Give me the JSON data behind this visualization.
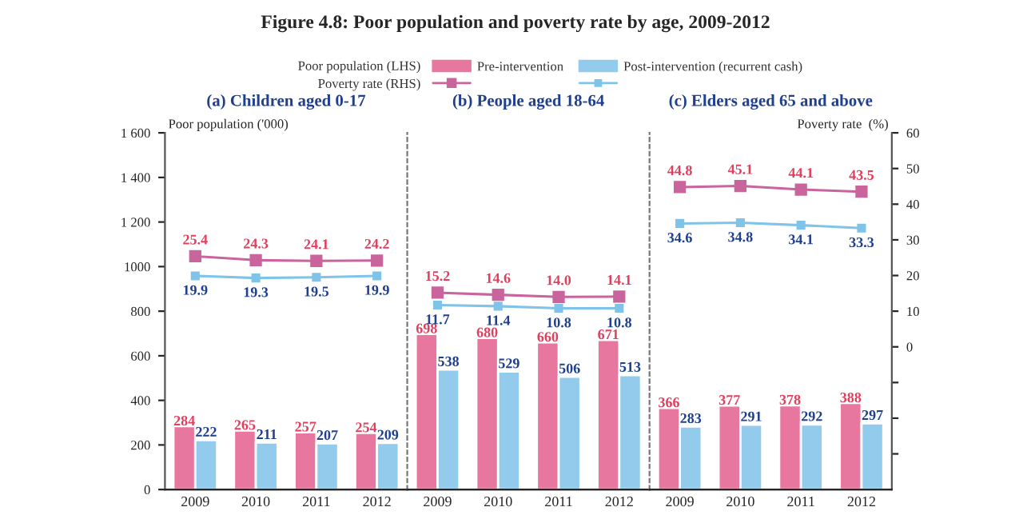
{
  "chart_data": [
    {
      "type": "bar",
      "title": "Figure 4.8: Poor population and poverty rate by age, 2009-2012",
      "subtitle": "(a) Children aged 0-17",
      "ylabel": "Poor population ('000)",
      "categories": [
        "2009",
        "2010",
        "2011",
        "2012"
      ],
      "series": [
        {
          "name": "Pre-intervention",
          "color": "#e8779f",
          "values": [
            284,
            265,
            257,
            254
          ]
        },
        {
          "name": "Post-intervention (recurrent cash)",
          "color": "#92cbeb",
          "values": [
            222,
            211,
            207,
            209
          ]
        },
        {
          "type": "line",
          "axis": "y2",
          "color": "#c9649c",
          "values": [
            25.4,
            24.3,
            24.1,
            24.2
          ]
        },
        {
          "type": "line",
          "axis": "y2",
          "color": "#7fc4e8",
          "values": [
            19.9,
            19.3,
            19.5,
            19.9
          ]
        }
      ],
      "annotations": [
        "Poor population (LHS)",
        "Poverty rate (RHS)"
      ],
      "ylim": [
        0,
        1600
      ],
      "yticks": [
        0,
        200,
        400,
        600,
        800,
        1000,
        {
          "value": 1200,
          "label": "1 200"
        },
        {
          "value": 1400,
          "label": "1 400"
        },
        {
          "value": 1600,
          "label": "1 600"
        }
      ],
      "y2lim": [
        -40,
        60
      ],
      "tick_labels": [
        "x",
        "y"
      ],
      "marker": "square",
      "data_labels": true,
      "legend": "top"
    },
    {
      "type": "bar",
      "subtitle": "(b) People aged 18-64",
      "categories": [
        "2009",
        "2010",
        "2011",
        "2012"
      ],
      "series": [
        {
          "color": "#e8779f",
          "values": [
            698,
            680,
            660,
            671
          ]
        },
        {
          "color": "#92cbeb",
          "values": [
            538,
            529,
            506,
            513
          ]
        },
        {
          "type": "line",
          "axis": "y2",
          "color": "#c9649c",
          "values": [
            15.2,
            14.6,
            14.0,
            14.1
          ],
          "value_labels": [
            "15.2",
            "14.6",
            "14.0",
            "14.1"
          ]
        },
        {
          "type": "line",
          "axis": "y2",
          "color": "#7fc4e8",
          "values": [
            11.7,
            11.4,
            10.8,
            10.8
          ]
        }
      ],
      "ylim": [
        0,
        1600
      ],
      "y2lim": [
        -40,
        60
      ],
      "tick_labels": [
        "x"
      ],
      "marker": "square",
      "data_labels": true
    },
    {
      "type": "bar",
      "subtitle": "(c) Elders aged 65 and above",
      "y2label": "Poverty rate  (%)",
      "categories": [
        "2009",
        "2010",
        "2011",
        "2012"
      ],
      "series": [
        {
          "color": "#e8779f",
          "values": [
            366,
            377,
            378,
            388
          ]
        },
        {
          "color": "#92cbeb",
          "values": [
            283,
            291,
            292,
            297
          ]
        },
        {
          "type": "line",
          "axis": "y2",
          "color": "#c9649c",
          "values": [
            44.8,
            45.1,
            44.1,
            43.5
          ]
        },
        {
          "type": "line",
          "axis": "y2",
          "color": "#7fc4e8",
          "values": [
            34.6,
            34.8,
            34.1,
            33.3
          ]
        }
      ],
      "ylim": [
        0,
        1600
      ],
      "y2lim": [
        -40,
        60
      ],
      "y2ticks": [
        {
          "value": -30,
          "label": null
        },
        {
          "value": -20,
          "label": null
        },
        {
          "value": -10,
          "label": null
        },
        0,
        10,
        20,
        30,
        40,
        50,
        60
      ],
      "tick_labels": [
        "x",
        "y2"
      ],
      "marker": "square",
      "data_labels": true
    }
  ]
}
